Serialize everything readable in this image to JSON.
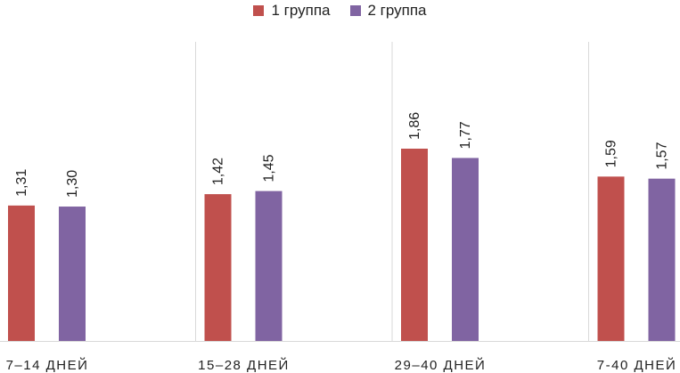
{
  "chart_data": {
    "type": "bar",
    "title": "",
    "xlabel": "",
    "ylabel": "",
    "ylim": [
      0,
      2.0
    ],
    "grid": false,
    "legend_position": "top",
    "categories": [
      "7–14 ДНЕЙ",
      "15–28 ДНЕЙ",
      "29–40 ДНЕЙ",
      "7-40 ДНЕЙ"
    ],
    "series": [
      {
        "name": "1 группа",
        "color": "#c0504d",
        "values": [
          1.31,
          1.42,
          1.86,
          1.59
        ],
        "labels": [
          "1,31",
          "1,42",
          "1,86",
          "1,59"
        ]
      },
      {
        "name": "2 группа",
        "color": "#8064a2",
        "values": [
          1.3,
          1.45,
          1.77,
          1.57
        ],
        "labels": [
          "1,30",
          "1,45",
          "1,77",
          "1,57"
        ]
      }
    ]
  }
}
